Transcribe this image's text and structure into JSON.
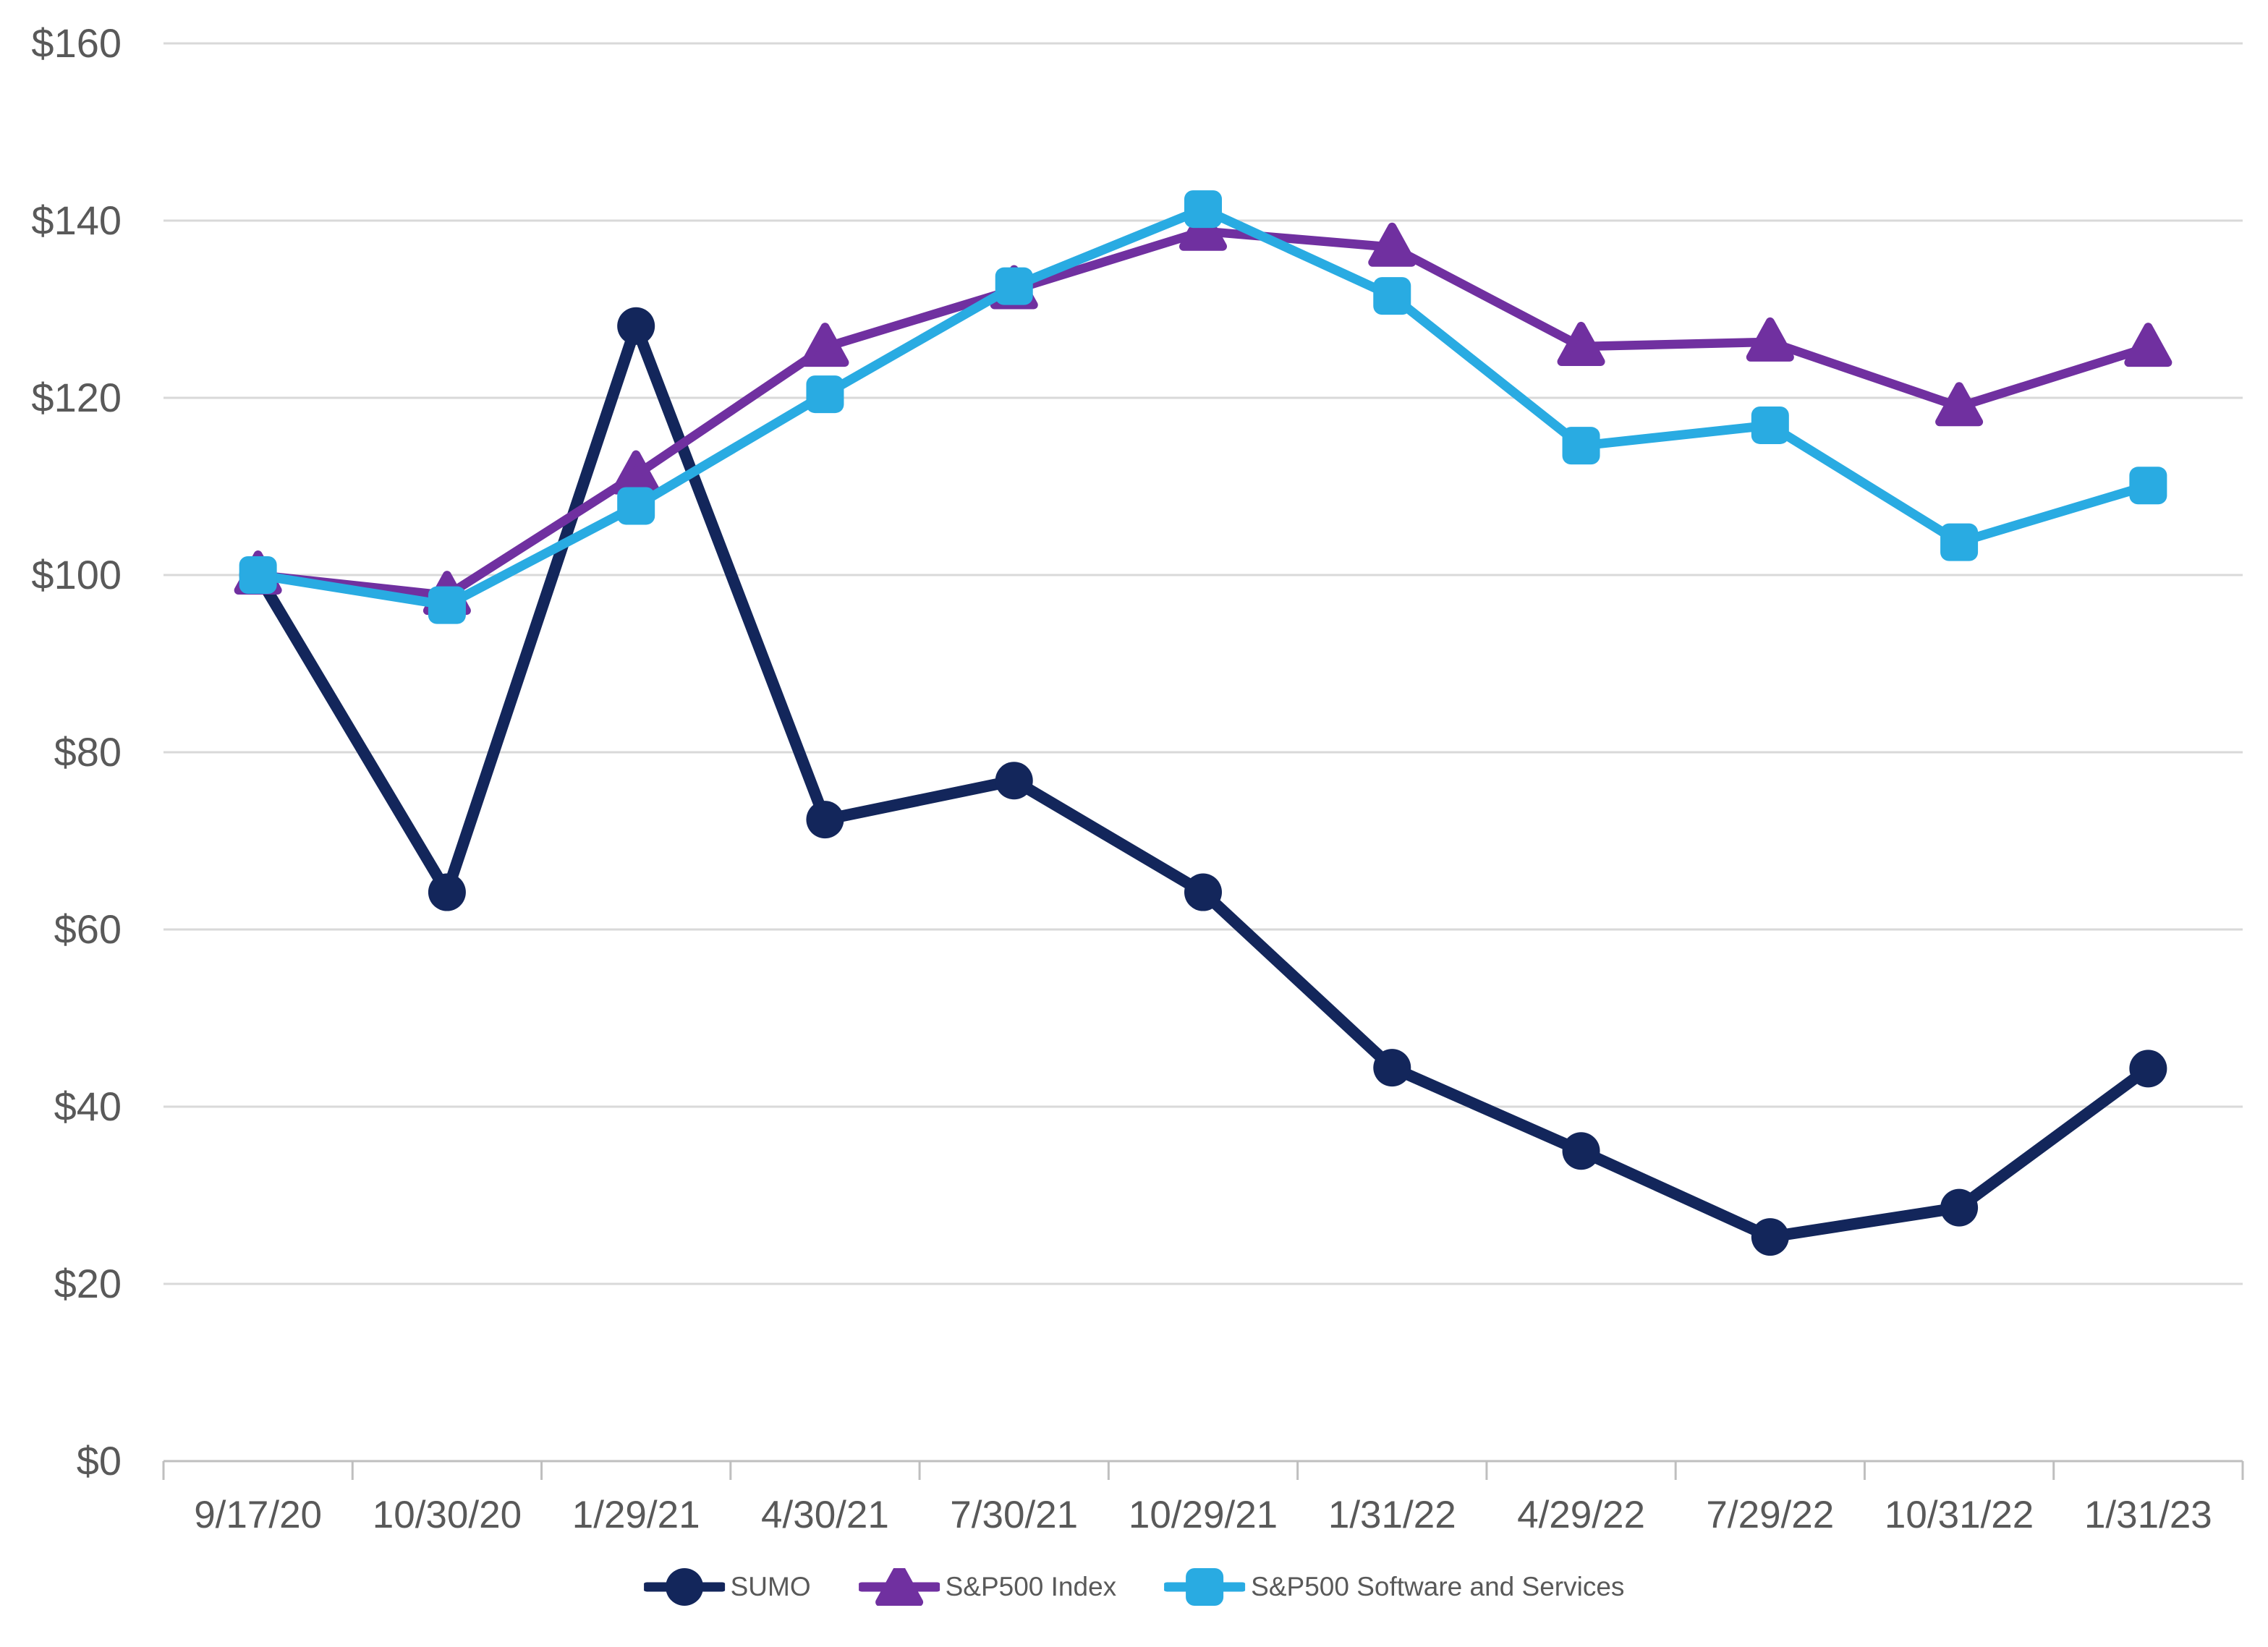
{
  "chart_data": {
    "type": "line",
    "title": "",
    "categories": [
      "9/17/20",
      "10/30/20",
      "1/29/21",
      "4/30/21",
      "7/30/21",
      "10/29/21",
      "1/31/22",
      "4/29/22",
      "7/29/22",
      "10/31/22",
      "1/31/23"
    ],
    "series": [
      {
        "name": "SUMO",
        "marker": "circle",
        "color": "#13265B",
        "values": [
          100,
          64.2,
          128.1,
          72.4,
          76.8,
          64.2,
          44.4,
          35.0,
          25.3,
          28.6,
          44.3
        ]
      },
      {
        "name": "S&P500 Index",
        "marker": "triangle",
        "color": "#7030A0",
        "values": [
          100,
          97.7,
          111.3,
          125.7,
          132.2,
          138.8,
          137.0,
          125.8,
          126.3,
          119.0,
          125.7
        ]
      },
      {
        "name": "S&P500 Software and Services",
        "marker": "square",
        "color": "#29ABE2",
        "values": [
          100,
          96.6,
          107.8,
          120.4,
          132.6,
          141.3,
          131.5,
          114.6,
          116.9,
          103.7,
          110.1
        ]
      }
    ],
    "y_axis": {
      "min": 0,
      "max": 160,
      "step": 20,
      "tick_labels": [
        "$0",
        "$20",
        "$40",
        "$60",
        "$80",
        "$100",
        "$120",
        "$140",
        "$160"
      ],
      "tick_color": "#595959"
    },
    "x_axis": {
      "tick_color": "#595959"
    },
    "grid": {
      "show": true,
      "color": "#D9D9D9",
      "axis_line_color": "#BFBFBF"
    },
    "legend": {
      "position": "bottom"
    }
  },
  "background_color": "#FFFFFF"
}
